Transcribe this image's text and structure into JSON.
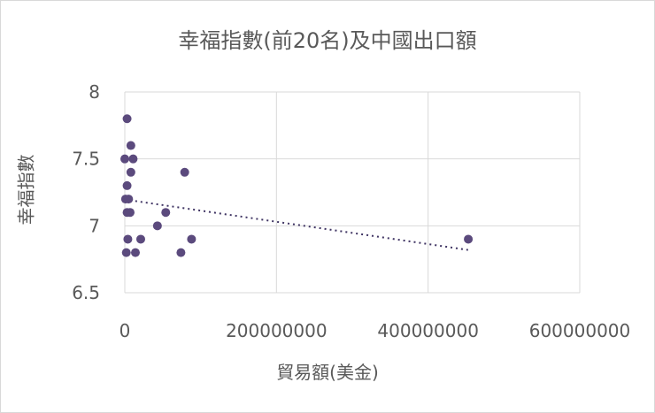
{
  "chart_data": {
    "type": "scatter",
    "title": "幸福指數(前20名)及中國出口額",
    "xlabel": "貿易額(美金)",
    "ylabel": "幸福指數",
    "xlim": [
      0,
      600000000
    ],
    "ylim": [
      6.5,
      8
    ],
    "xticks": [
      "0",
      "200000000",
      "400000000",
      "600000000"
    ],
    "yticks": [
      "6.5",
      "7",
      "7.5",
      "8"
    ],
    "grid": true,
    "trendline": "linear (dotted)",
    "marker_color": "#5b4a7d",
    "points": [
      {
        "x": 3000000,
        "y": 7.8
      },
      {
        "x": 8000000,
        "y": 7.6
      },
      {
        "x": 0,
        "y": 7.5
      },
      {
        "x": 11000000,
        "y": 7.5
      },
      {
        "x": 8000000,
        "y": 7.4
      },
      {
        "x": 79000000,
        "y": 7.4
      },
      {
        "x": 3000000,
        "y": 7.3
      },
      {
        "x": 1000000,
        "y": 7.2
      },
      {
        "x": 5000000,
        "y": 7.2
      },
      {
        "x": 3000000,
        "y": 7.1
      },
      {
        "x": 7000000,
        "y": 7.1
      },
      {
        "x": 54000000,
        "y": 7.1
      },
      {
        "x": 43000000,
        "y": 7.0
      },
      {
        "x": 4000000,
        "y": 6.9
      },
      {
        "x": 21000000,
        "y": 6.9
      },
      {
        "x": 88000000,
        "y": 6.9
      },
      {
        "x": 453000000,
        "y": 6.9
      },
      {
        "x": 2000000,
        "y": 6.8
      },
      {
        "x": 14000000,
        "y": 6.8
      },
      {
        "x": 74000000,
        "y": 6.8
      }
    ]
  }
}
